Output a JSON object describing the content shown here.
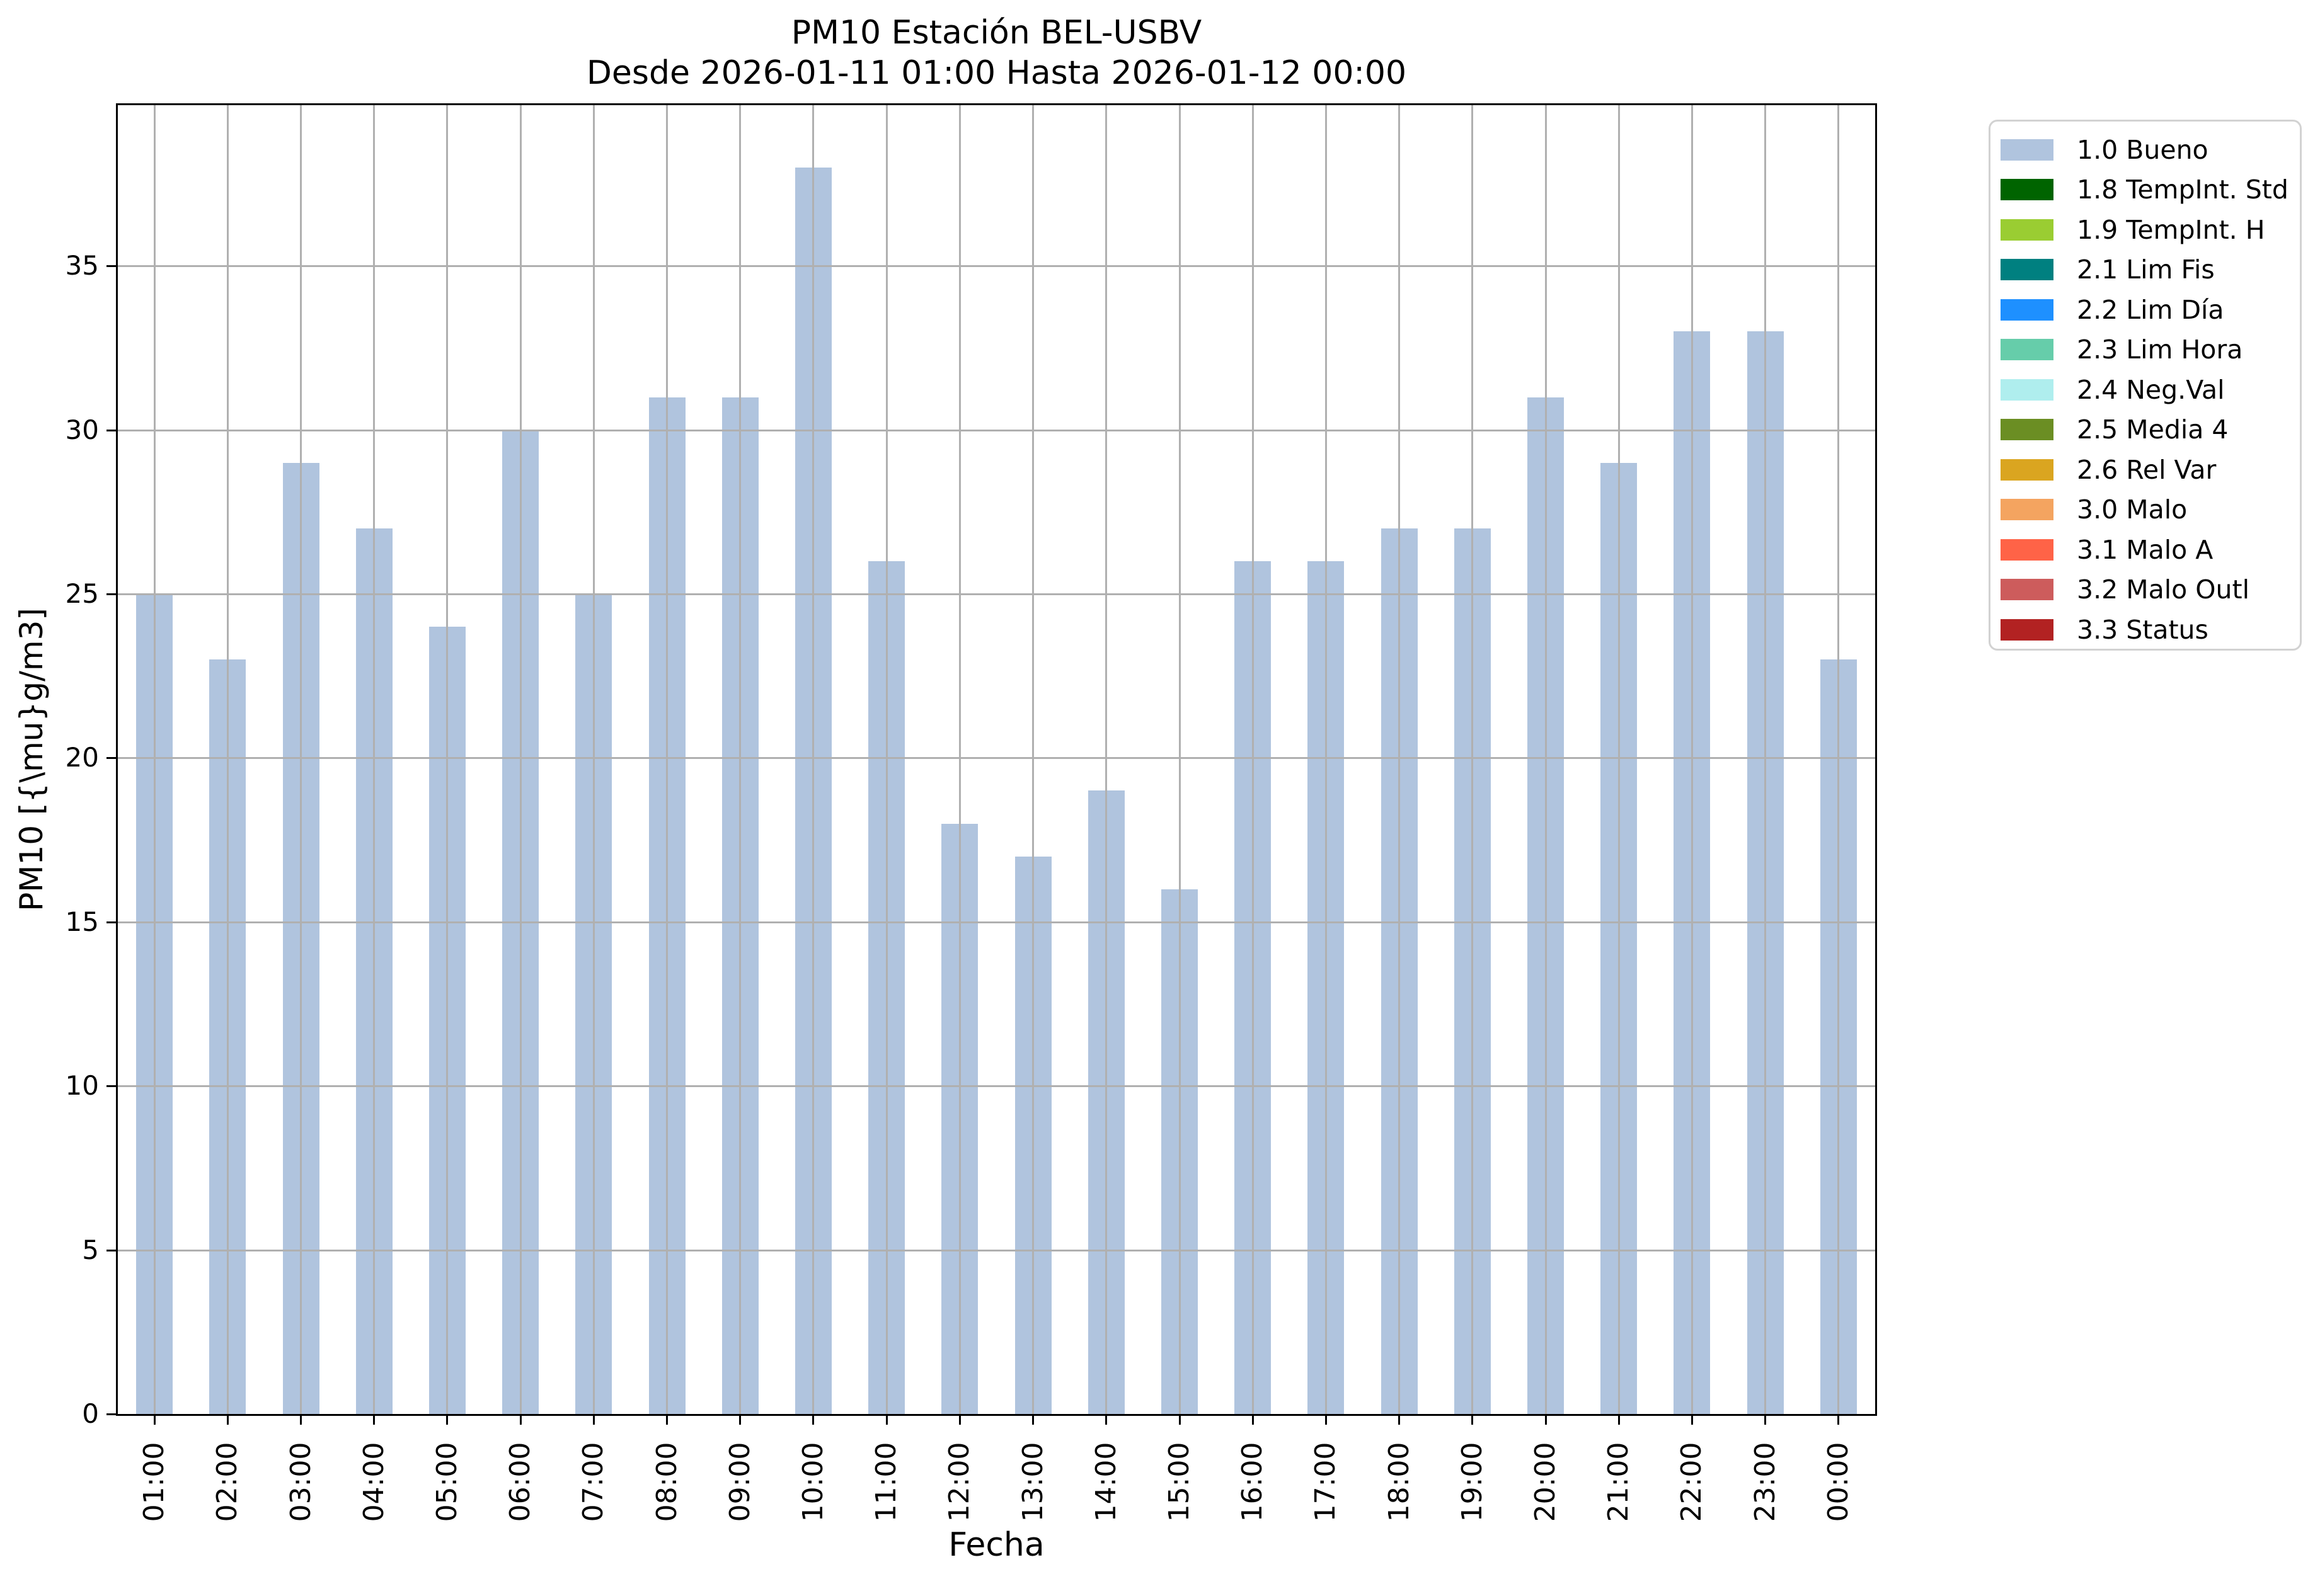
{
  "chart_data": {
    "type": "bar",
    "title": "PM10 Estación BEL-USBV",
    "subtitle": "Desde 2026-01-11 01:00 Hasta 2026-01-12 00:00",
    "xlabel": "Fecha",
    "ylabel": "PM10 [{\\mu}g/m3]",
    "categories": [
      "01:00",
      "02:00",
      "03:00",
      "04:00",
      "05:00",
      "06:00",
      "07:00",
      "08:00",
      "09:00",
      "10:00",
      "11:00",
      "12:00",
      "13:00",
      "14:00",
      "15:00",
      "16:00",
      "17:00",
      "18:00",
      "19:00",
      "20:00",
      "21:00",
      "22:00",
      "23:00",
      "00:00"
    ],
    "values": [
      25,
      23,
      29,
      27,
      24,
      30,
      25,
      31,
      31,
      38,
      26,
      18,
      17,
      19,
      16,
      26,
      26,
      27,
      27,
      31,
      29,
      33,
      33,
      23
    ],
    "series_name": "1.0 Bueno",
    "bar_color": "#B0C4DE",
    "ylim": [
      0,
      39.9
    ],
    "yticks": [
      0,
      5,
      10,
      15,
      20,
      25,
      30,
      35
    ],
    "grid": true,
    "grid_color": "#b0b0b0",
    "legend": {
      "position": "outside-right",
      "entries": [
        {
          "label": "1.0 Bueno",
          "color": "#B0C4DE"
        },
        {
          "label": "1.8 TempInt. Std",
          "color": "#006400"
        },
        {
          "label": "1.9 TempInt. H",
          "color": "#9ACD32"
        },
        {
          "label": "2.1 Lim Fis",
          "color": "#008080"
        },
        {
          "label": "2.2 Lim Día",
          "color": "#1E90FF"
        },
        {
          "label": "2.3 Lim Hora",
          "color": "#66CDAA"
        },
        {
          "label": "2.4 Neg.Val",
          "color": "#AFEEEE"
        },
        {
          "label": "2.5 Media 4",
          "color": "#6B8E23"
        },
        {
          "label": "2.6 Rel Var",
          "color": "#DAA520"
        },
        {
          "label": "3.0 Malo",
          "color": "#F4A460"
        },
        {
          "label": "3.1 Malo A",
          "color": "#FF6347"
        },
        {
          "label": "3.2 Malo Outl",
          "color": "#CD5C5C"
        },
        {
          "label": "3.3 Status",
          "color": "#B22222"
        }
      ]
    }
  }
}
